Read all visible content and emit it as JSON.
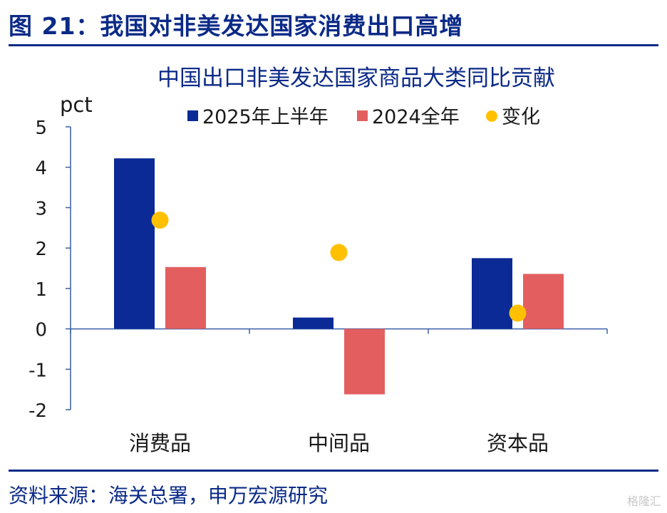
{
  "figure": {
    "title": "图 21：我国对非美发达国家消费出口高增",
    "source": "资料来源：海关总署，申万宏源研究",
    "watermark": "格隆汇"
  },
  "chart_data": {
    "type": "bar",
    "title": "中国出口非美发达国家商品大类同比贡献",
    "ylabel": "pct",
    "xlabel": "",
    "ylim": [
      -2,
      5
    ],
    "yticks": [
      5,
      4,
      3,
      2,
      1,
      0,
      -1,
      -2
    ],
    "grid": false,
    "legend_position": "top",
    "categories": [
      "消费品",
      "中间品",
      "资本品"
    ],
    "series": [
      {
        "name": "2025年上半年",
        "type": "bar",
        "color": "#0b2a96",
        "values": [
          4.22,
          0.28,
          1.75
        ]
      },
      {
        "name": "2024全年",
        "type": "bar",
        "color": "#e35f5f",
        "values": [
          1.53,
          -1.62,
          1.36
        ]
      },
      {
        "name": "变化",
        "type": "scatter",
        "color": "#ffc000",
        "values": [
          2.69,
          1.89,
          0.39
        ]
      }
    ]
  }
}
